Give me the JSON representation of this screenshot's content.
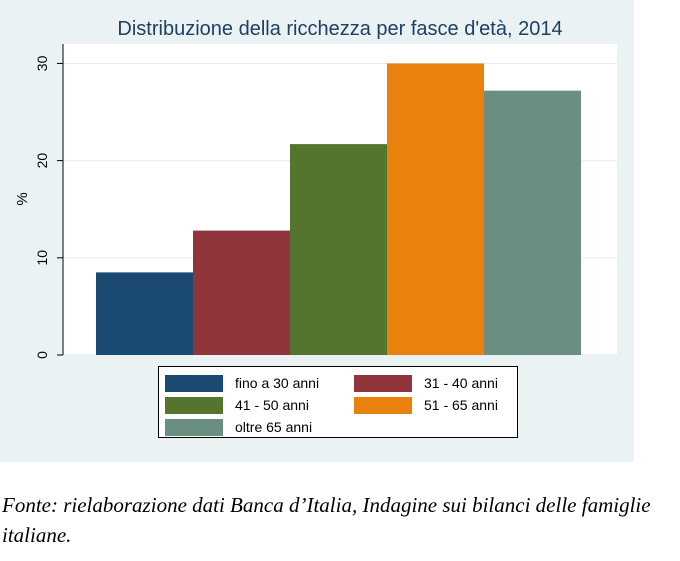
{
  "chart_data": {
    "type": "bar",
    "title": "Distribuzione della ricchezza per fasce d'età, 2014",
    "ylabel": "%",
    "xlabel": "",
    "ylim": [
      0,
      32
    ],
    "yticks": [
      0,
      10,
      20,
      30
    ],
    "ytick_labels": [
      "0",
      "10",
      "20",
      "30"
    ],
    "grid": true,
    "legend_position": "bottom",
    "series": [
      {
        "name": "fino a 30 anni",
        "value": 8.5,
        "color": "#1a4a72"
      },
      {
        "name": "31 - 40 anni",
        "value": 12.8,
        "color": "#90353b"
      },
      {
        "name": "41 - 50 anni",
        "value": 21.7,
        "color": "#55752f"
      },
      {
        "name": "51 - 65 anni",
        "value": 30.0,
        "color": "#e8820c"
      },
      {
        "name": "oltre 65 anni",
        "value": 27.2,
        "color": "#6a8e7f"
      }
    ]
  },
  "caption": "Fonte: rielaborazione dati Banca d’Italia, Indagine sui bilanci delle famiglie italiane."
}
